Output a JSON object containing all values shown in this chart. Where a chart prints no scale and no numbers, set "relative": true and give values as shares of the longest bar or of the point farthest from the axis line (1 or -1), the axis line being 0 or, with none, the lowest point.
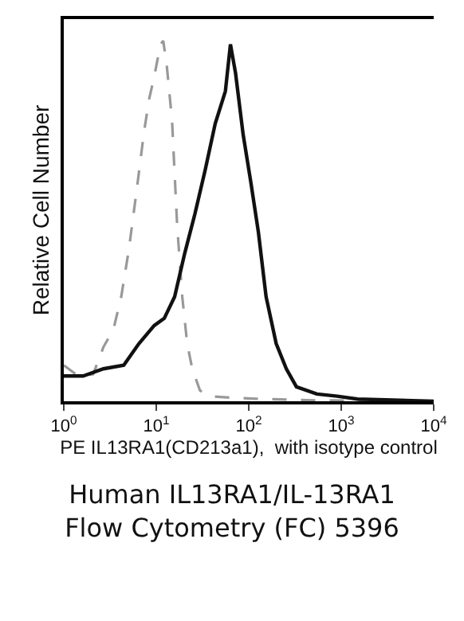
{
  "chart_data": {
    "type": "line",
    "title": "Human IL13RA1/IL-13RA1 Flow Cytometry (FC) 5396",
    "xlabel": "PE IL13RA1(CD213a1),  with isotype control",
    "ylabel": "Relative Cell Number",
    "log": "x",
    "relative": true,
    "xlim": [
      1,
      10000
    ],
    "xticks": [
      {
        "value": 1,
        "label": "10$^{0}$"
      },
      {
        "value": 10,
        "label": "10$^{1}$"
      },
      {
        "value": 100,
        "label": "10$^{2}$"
      },
      {
        "value": 1000,
        "label": "10$^{3}$"
      },
      {
        "value": 10000,
        "label": "10$^{4}$"
      }
    ],
    "series": [
      {
        "color": "#999999",
        "line_style": "dashed",
        "x": [
          1,
          1.43,
          2.08,
          2.68,
          3.45,
          4.18,
          5.05,
          6.1,
          7.4,
          8.4,
          9.5,
          11.1,
          11.9,
          13.0,
          14.8,
          16.8,
          19.1,
          21.6,
          24.5,
          29.7,
          38.2,
          63,
          119,
          423,
          10000
        ],
        "values": [
          0.1,
          0.07,
          0.075,
          0.15,
          0.2,
          0.29,
          0.42,
          0.58,
          0.75,
          0.84,
          0.9,
          0.99,
          1.0,
          0.93,
          0.78,
          0.49,
          0.29,
          0.16,
          0.09,
          0.03,
          0.014,
          0.01,
          0.007,
          0.003,
          0
        ]
      },
      {
        "color": "#111111",
        "line_style": "solid",
        "x": [
          1,
          1.62,
          2.68,
          4.45,
          6.5,
          9.5,
          12.2,
          15.8,
          20.3,
          26.2,
          33.7,
          43.4,
          55.9,
          63.4,
          72,
          87,
          105,
          127,
          154,
          198,
          255,
          328,
          545,
          904,
          1500,
          10000
        ],
        "values": [
          0.07,
          0.07,
          0.09,
          0.1,
          0.16,
          0.21,
          0.23,
          0.29,
          0.41,
          0.52,
          0.64,
          0.77,
          0.86,
          0.99,
          0.91,
          0.74,
          0.61,
          0.47,
          0.29,
          0.16,
          0.09,
          0.04,
          0.02,
          0.014,
          0.006,
          0
        ]
      }
    ]
  }
}
